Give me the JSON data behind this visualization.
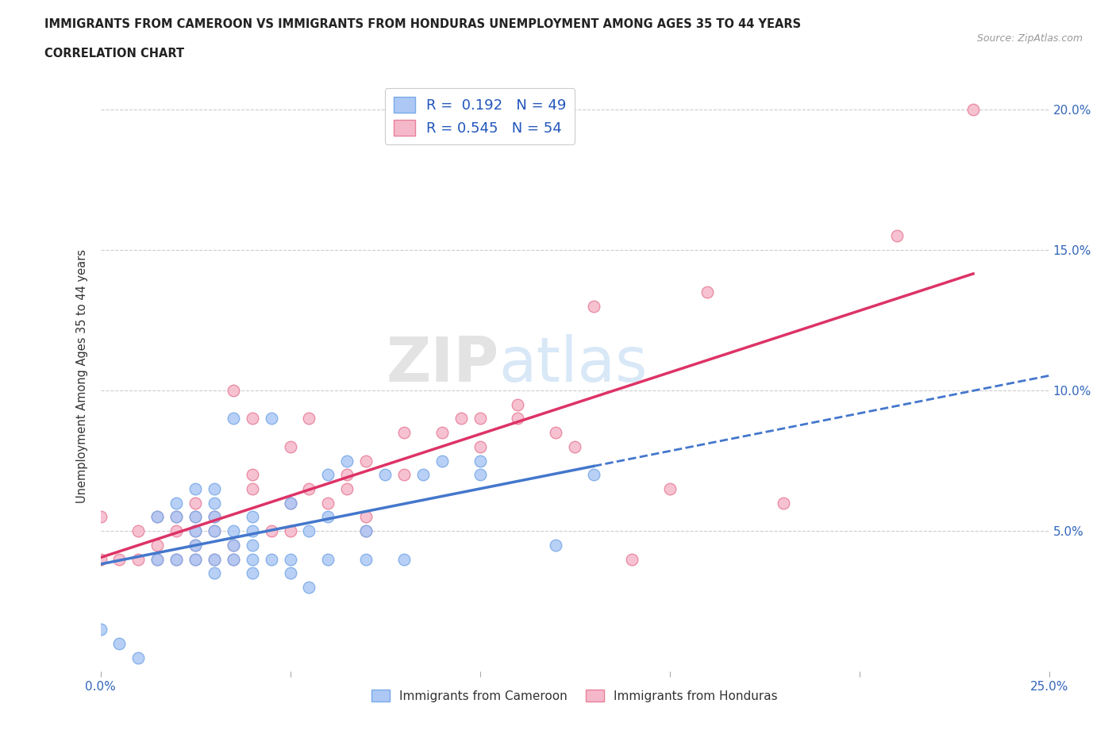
{
  "title_line1": "IMMIGRANTS FROM CAMEROON VS IMMIGRANTS FROM HONDURAS UNEMPLOYMENT AMONG AGES 35 TO 44 YEARS",
  "title_line2": "CORRELATION CHART",
  "source": "Source: ZipAtlas.com",
  "ylabel": "Unemployment Among Ages 35 to 44 years",
  "watermark": "ZIPatlas",
  "xlim": [
    0.0,
    0.25
  ],
  "ylim": [
    0.0,
    0.21
  ],
  "xticks": [
    0.0,
    0.05,
    0.1,
    0.15,
    0.2,
    0.25
  ],
  "xticklabels": [
    "0.0%",
    "",
    "",
    "",
    "",
    "25.0%"
  ],
  "yticks": [
    0.05,
    0.1,
    0.15,
    0.2
  ],
  "yticklabels": [
    "5.0%",
    "10.0%",
    "15.0%",
    "20.0%"
  ],
  "cameroon_color": "#adc8f5",
  "cameroon_edge": "#7aaae8",
  "honduras_color": "#f5b8cb",
  "honduras_edge": "#e8809a",
  "trendline_cameroon_color": "#4477cc",
  "trendline_honduras_color": "#dd3366",
  "R_cameroon": 0.192,
  "N_cameroon": 49,
  "R_honduras": 0.545,
  "N_honduras": 54,
  "legend_label_cameroon": "Immigrants from Cameroon",
  "legend_label_honduras": "Immigrants from Honduras",
  "cameroon_x": [
    0.0,
    0.005,
    0.01,
    0.015,
    0.015,
    0.02,
    0.02,
    0.02,
    0.025,
    0.025,
    0.025,
    0.025,
    0.025,
    0.03,
    0.03,
    0.03,
    0.03,
    0.03,
    0.03,
    0.035,
    0.035,
    0.035,
    0.035,
    0.04,
    0.04,
    0.04,
    0.04,
    0.04,
    0.045,
    0.045,
    0.05,
    0.05,
    0.05,
    0.055,
    0.055,
    0.06,
    0.06,
    0.06,
    0.065,
    0.07,
    0.07,
    0.075,
    0.08,
    0.085,
    0.09,
    0.1,
    0.1,
    0.12,
    0.13
  ],
  "cameroon_y": [
    0.015,
    0.01,
    0.005,
    0.04,
    0.055,
    0.04,
    0.055,
    0.06,
    0.04,
    0.045,
    0.05,
    0.055,
    0.065,
    0.035,
    0.04,
    0.05,
    0.055,
    0.06,
    0.065,
    0.04,
    0.045,
    0.05,
    0.09,
    0.035,
    0.04,
    0.045,
    0.05,
    0.055,
    0.04,
    0.09,
    0.035,
    0.04,
    0.06,
    0.03,
    0.05,
    0.04,
    0.055,
    0.07,
    0.075,
    0.04,
    0.05,
    0.07,
    0.04,
    0.07,
    0.075,
    0.07,
    0.075,
    0.045,
    0.07
  ],
  "honduras_x": [
    0.0,
    0.0,
    0.005,
    0.01,
    0.01,
    0.015,
    0.015,
    0.015,
    0.02,
    0.02,
    0.02,
    0.025,
    0.025,
    0.025,
    0.025,
    0.025,
    0.03,
    0.03,
    0.03,
    0.035,
    0.035,
    0.035,
    0.04,
    0.04,
    0.04,
    0.045,
    0.05,
    0.05,
    0.05,
    0.055,
    0.055,
    0.06,
    0.065,
    0.065,
    0.07,
    0.07,
    0.07,
    0.08,
    0.08,
    0.09,
    0.095,
    0.1,
    0.1,
    0.11,
    0.11,
    0.12,
    0.125,
    0.13,
    0.14,
    0.15,
    0.16,
    0.18,
    0.21,
    0.23
  ],
  "honduras_y": [
    0.04,
    0.055,
    0.04,
    0.04,
    0.05,
    0.04,
    0.045,
    0.055,
    0.04,
    0.05,
    0.055,
    0.04,
    0.045,
    0.05,
    0.055,
    0.06,
    0.04,
    0.05,
    0.055,
    0.04,
    0.045,
    0.1,
    0.065,
    0.07,
    0.09,
    0.05,
    0.05,
    0.06,
    0.08,
    0.065,
    0.09,
    0.06,
    0.065,
    0.07,
    0.05,
    0.055,
    0.075,
    0.07,
    0.085,
    0.085,
    0.09,
    0.08,
    0.09,
    0.09,
    0.095,
    0.085,
    0.08,
    0.13,
    0.04,
    0.065,
    0.135,
    0.06,
    0.155,
    0.2
  ]
}
